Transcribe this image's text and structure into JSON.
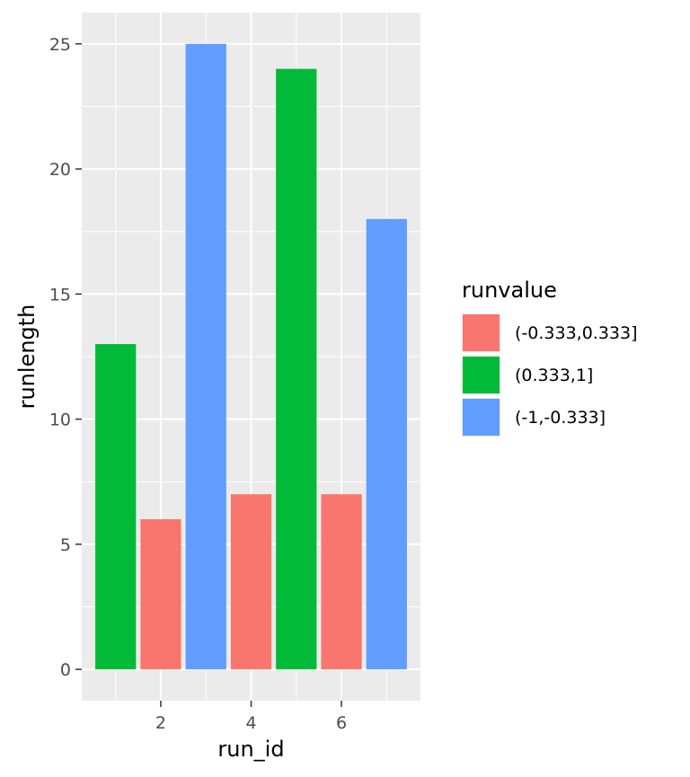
{
  "chart_data": {
    "type": "bar",
    "xlabel": "run_id",
    "ylabel": "runlength",
    "x": [
      1,
      2,
      3,
      4,
      5,
      6,
      7
    ],
    "values": [
      13,
      6,
      25,
      7,
      24,
      7,
      18
    ],
    "groups": [
      "(0.333,1]",
      "(-0.333,0.333]",
      "(-1,-0.333]",
      "(-0.333,0.333]",
      "(0.333,1]",
      "(-0.333,0.333]",
      "(-1,-0.333]"
    ],
    "xlim": [
      0.25,
      7.75
    ],
    "ylim": [
      -1.25,
      26.25
    ],
    "x_ticks": [
      2,
      4,
      6
    ],
    "y_ticks": [
      0,
      5,
      10,
      15,
      20,
      25
    ],
    "legend": {
      "title": "runvalue",
      "position": "right",
      "entries": [
        {
          "label": "(-0.333,0.333]",
          "color": "#F8766D"
        },
        {
          "label": "(0.333,1]",
          "color": "#00BA38"
        },
        {
          "label": "(-1,-0.333]",
          "color": "#619CFF"
        }
      ]
    },
    "grid": true,
    "panel_background": "#EBEBEB"
  }
}
